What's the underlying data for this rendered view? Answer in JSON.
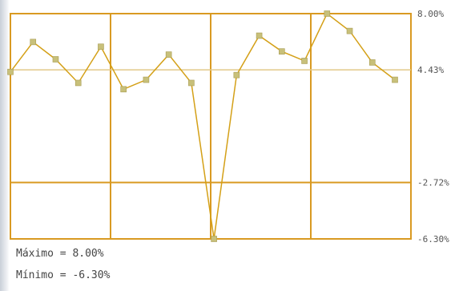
{
  "chart_data": {
    "type": "line",
    "series": [
      {
        "values": [
          4.3,
          6.2,
          5.1,
          3.6,
          5.9,
          3.2,
          3.8,
          5.4,
          3.6,
          -6.3,
          4.1,
          6.6,
          5.6,
          5.0,
          8.0,
          6.9,
          4.9,
          3.8
        ]
      }
    ],
    "y_ticks": [
      "8.00%",
      "4.43%",
      "-2.72%",
      "-6.30%"
    ],
    "y_tick_values": [
      8.0,
      4.43,
      -2.72,
      -6.3
    ],
    "ylim": [
      -6.3,
      8.0
    ],
    "grid": true,
    "colors": {
      "line": "#d4a017",
      "grid": "#d99a22",
      "marker_fill": "#c8c07a",
      "marker_stroke": "#a89c52"
    }
  },
  "stats": {
    "max_label": "Máximo = 8.00%",
    "min_label": "Mínimo = -6.30%"
  }
}
